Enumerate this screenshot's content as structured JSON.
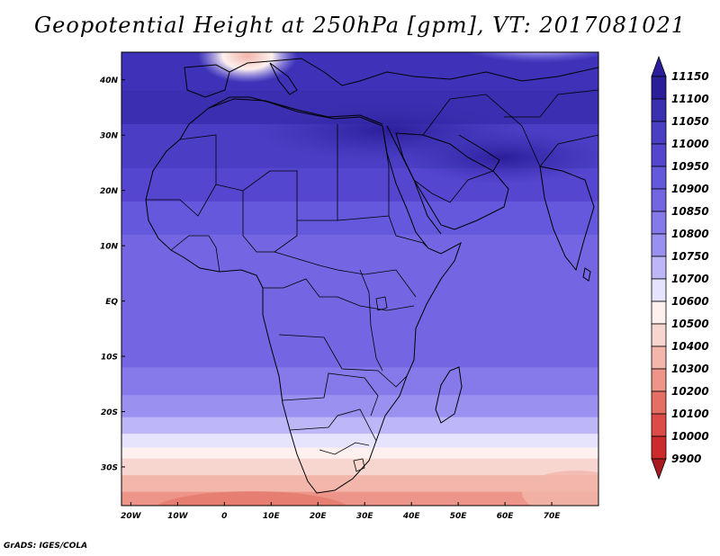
{
  "title": "Geopotential Height at 250hPa [gpm], VT: 2017081021",
  "credit": "GrADS: IGES/COLA",
  "map": {
    "projection": "latlon",
    "lon_range": [
      -22,
      80
    ],
    "lat_range": [
      -37,
      45
    ],
    "lat_ticks": [
      {
        "lat": 40,
        "label": "40N"
      },
      {
        "lat": 30,
        "label": "30N"
      },
      {
        "lat": 20,
        "label": "20N"
      },
      {
        "lat": 10,
        "label": "10N"
      },
      {
        "lat": 0,
        "label": "EQ"
      },
      {
        "lat": -10,
        "label": "10S"
      },
      {
        "lat": -20,
        "label": "20S"
      },
      {
        "lat": -30,
        "label": "30S"
      }
    ],
    "lon_ticks": [
      {
        "lon": -20,
        "label": "20W"
      },
      {
        "lon": -10,
        "label": "10W"
      },
      {
        "lon": 0,
        "label": "0"
      },
      {
        "lon": 10,
        "label": "10E"
      },
      {
        "lon": 20,
        "label": "20E"
      },
      {
        "lon": 30,
        "label": "30E"
      },
      {
        "lon": 40,
        "label": "40E"
      },
      {
        "lon": 50,
        "label": "50E"
      },
      {
        "lon": 60,
        "label": "60E"
      },
      {
        "lon": 70,
        "label": "70E"
      }
    ]
  },
  "colorbar": {
    "levels": [
      "11150",
      "11100",
      "11050",
      "11000",
      "10950",
      "10900",
      "10850",
      "10800",
      "10750",
      "10700",
      "10600",
      "10500",
      "10400",
      "10300",
      "10200",
      "10100",
      "10000",
      "9900"
    ],
    "colors": [
      "#2a1e9a",
      "#3a2fb0",
      "#4a3fc4",
      "#5546cf",
      "#6458dc",
      "#7466e2",
      "#8679ea",
      "#9a90f0",
      "#bdb6f7",
      "#e6e4fc",
      "#fdf0ee",
      "#f7d6d0",
      "#f2b6ab",
      "#ec9588",
      "#e56f64",
      "#dc4b46",
      "#cc2a2b",
      "#a81a1f"
    ]
  },
  "contour_bands": [
    {
      "lat_top": 45,
      "lat_bot": 38,
      "color": "#3e33b8"
    },
    {
      "lat_top": 38,
      "lat_bot": 32,
      "color": "#3a2fb0"
    },
    {
      "lat_top": 32,
      "lat_bot": 24,
      "color": "#4a3fc4"
    },
    {
      "lat_top": 24,
      "lat_bot": 18,
      "color": "#5546cf"
    },
    {
      "lat_top": 18,
      "lat_bot": 12,
      "color": "#6458dc"
    },
    {
      "lat_top": 12,
      "lat_bot": -12,
      "color": "#7466e2"
    },
    {
      "lat_top": -12,
      "lat_bot": -17,
      "color": "#8679ea"
    },
    {
      "lat_top": -17,
      "lat_bot": -21,
      "color": "#9a90f0"
    },
    {
      "lat_top": -21,
      "lat_bot": -24,
      "color": "#bdb6f7"
    },
    {
      "lat_top": -24,
      "lat_bot": -26.5,
      "color": "#e6e4fc"
    },
    {
      "lat_top": -26.5,
      "lat_bot": -28.5,
      "color": "#fdf0ee"
    },
    {
      "lat_top": -28.5,
      "lat_bot": -31.5,
      "color": "#f7d6d0"
    },
    {
      "lat_top": -31.5,
      "lat_bot": -34.5,
      "color": "#f2b6ab"
    },
    {
      "lat_top": -34.5,
      "lat_bot": -37,
      "color": "#ec9588"
    }
  ]
}
